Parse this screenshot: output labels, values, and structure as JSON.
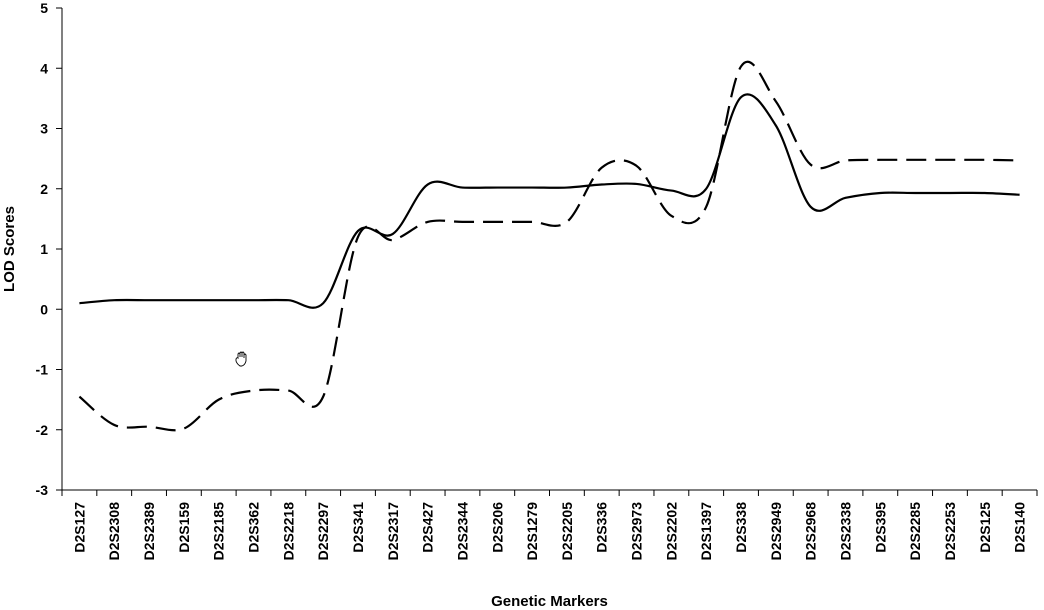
{
  "chart_data": {
    "type": "line",
    "xlabel": "Genetic Markers",
    "ylabel": "LOD Scores",
    "ylim": [
      -3,
      5
    ],
    "yticks": [
      -3,
      -2,
      -1,
      0,
      1,
      2,
      3,
      4,
      5
    ],
    "grid": false,
    "categories": [
      "D2S127",
      "D2S2308",
      "D2S2389",
      "D2S159",
      "D2S2185",
      "D2S362",
      "D2S2218",
      "D2S2297",
      "D2S341",
      "D2S2317",
      "D2S427",
      "D2S2344",
      "D2S206",
      "D2S1279",
      "D2S2205",
      "D2S336",
      "D2S2973",
      "D2S2202",
      "D2S1397",
      "D2S338",
      "D2S2949",
      "D2S2968",
      "D2S2338",
      "D2S395",
      "D2S2285",
      "D2S2253",
      "D2S125",
      "D2S140"
    ],
    "series": [
      {
        "style": "solid",
        "color": "#000000",
        "values": [
          0.1,
          0.15,
          0.15,
          0.15,
          0.15,
          0.15,
          0.15,
          0.1,
          1.3,
          1.25,
          2.07,
          2.02,
          2.02,
          2.02,
          2.02,
          2.07,
          2.08,
          1.97,
          2.0,
          3.52,
          3.05,
          1.7,
          1.85,
          1.93,
          1.93,
          1.93,
          1.93,
          1.9
        ]
      },
      {
        "style": "dashed",
        "color": "#000000",
        "values": [
          -1.45,
          -1.92,
          -1.95,
          -1.98,
          -1.5,
          -1.35,
          -1.35,
          -1.45,
          1.2,
          1.15,
          1.45,
          1.45,
          1.45,
          1.45,
          1.45,
          2.35,
          2.38,
          1.55,
          1.7,
          4.03,
          3.45,
          2.4,
          2.47,
          2.48,
          2.48,
          2.48,
          2.48,
          2.47
        ]
      }
    ]
  }
}
